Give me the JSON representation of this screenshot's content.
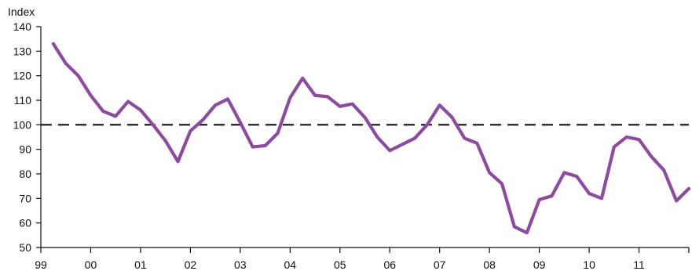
{
  "chart_data": {
    "type": "line",
    "title": "",
    "ylabel": "Index",
    "xlabel": "",
    "ylim": [
      50,
      140
    ],
    "yticks": [
      50,
      60,
      70,
      80,
      90,
      100,
      110,
      120,
      130,
      140
    ],
    "ytick_labels": [
      "50",
      "60",
      "70",
      "80",
      "90",
      "100",
      "110",
      "120",
      "130",
      "140"
    ],
    "xlim": [
      1999.0,
      2012.0
    ],
    "xticks": [
      1999,
      2000,
      2001,
      2002,
      2003,
      2004,
      2005,
      2006,
      2007,
      2008,
      2009,
      2010,
      2011,
      2012
    ],
    "xtick_labels": [
      "99",
      "00",
      "01",
      "02",
      "03",
      "04",
      "05",
      "06",
      "07",
      "08",
      "09",
      "10",
      "11"
    ],
    "xlabel_positions": [
      1999.0,
      2000.0,
      2001.0,
      2002.0,
      2003.0,
      2004.0,
      2005.0,
      2006.0,
      2007.0,
      2008.0,
      2009.0,
      2010.0,
      2011.0
    ],
    "grid": false,
    "reference_line": {
      "y": 100,
      "style": "dashed",
      "color": "#111111"
    },
    "series": [
      {
        "color": "#8e4aa0",
        "x": [
          1999.25,
          1999.5,
          1999.75,
          2000.0,
          2000.25,
          2000.5,
          2000.75,
          2001.0,
          2001.25,
          2001.5,
          2001.75,
          2002.0,
          2002.25,
          2002.5,
          2002.75,
          2003.0,
          2003.25,
          2003.5,
          2003.75,
          2004.0,
          2004.25,
          2004.5,
          2004.75,
          2005.0,
          2005.25,
          2005.5,
          2005.75,
          2006.0,
          2006.25,
          2006.5,
          2006.75,
          2007.0,
          2007.25,
          2007.5,
          2007.75,
          2008.0,
          2008.25,
          2008.5,
          2008.75,
          2009.0,
          2009.25,
          2009.5,
          2009.75,
          2010.0,
          2010.25,
          2010.5,
          2010.75,
          2011.0,
          2011.25,
          2011.5,
          2011.75,
          2012.0
        ],
        "values": [
          133,
          125,
          120,
          112,
          105.5,
          103.5,
          109.5,
          106,
          100,
          93.5,
          85,
          97.5,
          102,
          108,
          110.5,
          101,
          91,
          91.5,
          96.5,
          111,
          119,
          112,
          111.5,
          107.5,
          108.5,
          103,
          95,
          89.5,
          92,
          94.5,
          100,
          108,
          103,
          94.5,
          92.5,
          80.5,
          76,
          58.5,
          56,
          69.5,
          71,
          80.5,
          79,
          72,
          70,
          91,
          95,
          94,
          87,
          81.5,
          69,
          74
        ]
      }
    ]
  }
}
